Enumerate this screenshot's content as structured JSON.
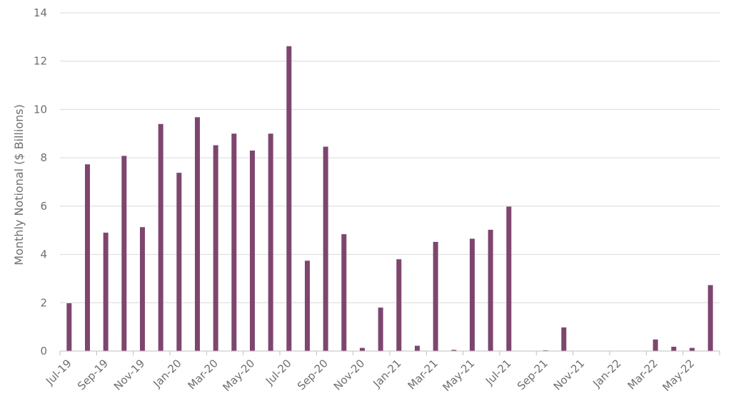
{
  "chart_data": {
    "type": "bar",
    "title": "",
    "xlabel": "",
    "ylabel": "Monthly Notional ($ Billions)",
    "ylim": [
      0,
      14
    ],
    "yticks": [
      0,
      2,
      4,
      6,
      8,
      10,
      12,
      14
    ],
    "grid": true,
    "legend": "none",
    "bar_color": "#7e466f",
    "categories": [
      "Jul-19",
      "Aug-19",
      "Sep-19",
      "Oct-19",
      "Nov-19",
      "Dec-19",
      "Jan-20",
      "Feb-20",
      "Mar-20",
      "Apr-20",
      "May-20",
      "Jun-20",
      "Jul-20",
      "Aug-20",
      "Sep-20",
      "Oct-20",
      "Nov-20",
      "Dec-20",
      "Jan-21",
      "Feb-21",
      "Mar-21",
      "Apr-21",
      "May-21",
      "Jun-21",
      "Jul-21",
      "Aug-21",
      "Sep-21",
      "Oct-21",
      "Nov-21",
      "Dec-21",
      "Jan-22",
      "Feb-22",
      "Mar-22",
      "Apr-22",
      "May-22",
      "Jun-22"
    ],
    "values": [
      1.98,
      7.73,
      4.9,
      8.08,
      5.13,
      9.4,
      7.38,
      9.68,
      8.52,
      9.0,
      8.3,
      9.0,
      12.62,
      3.74,
      8.46,
      4.84,
      0.13,
      1.8,
      3.8,
      0.22,
      4.52,
      0.05,
      4.65,
      5.02,
      5.98,
      0.0,
      0.03,
      0.98,
      0.0,
      0.0,
      0.0,
      0.0,
      0.48,
      0.18,
      0.13,
      2.73
    ],
    "x_tick_labels": [
      "Jul-19",
      "Sep-19",
      "Nov-19",
      "Jan-20",
      "Mar-20",
      "May-20",
      "Jul-20",
      "Sep-20",
      "Nov-20",
      "Jan-21",
      "Mar-21",
      "May-21",
      "Jul-21",
      "Sep-21",
      "Nov-21",
      "Jan-22",
      "Mar-22",
      "May-22"
    ]
  }
}
